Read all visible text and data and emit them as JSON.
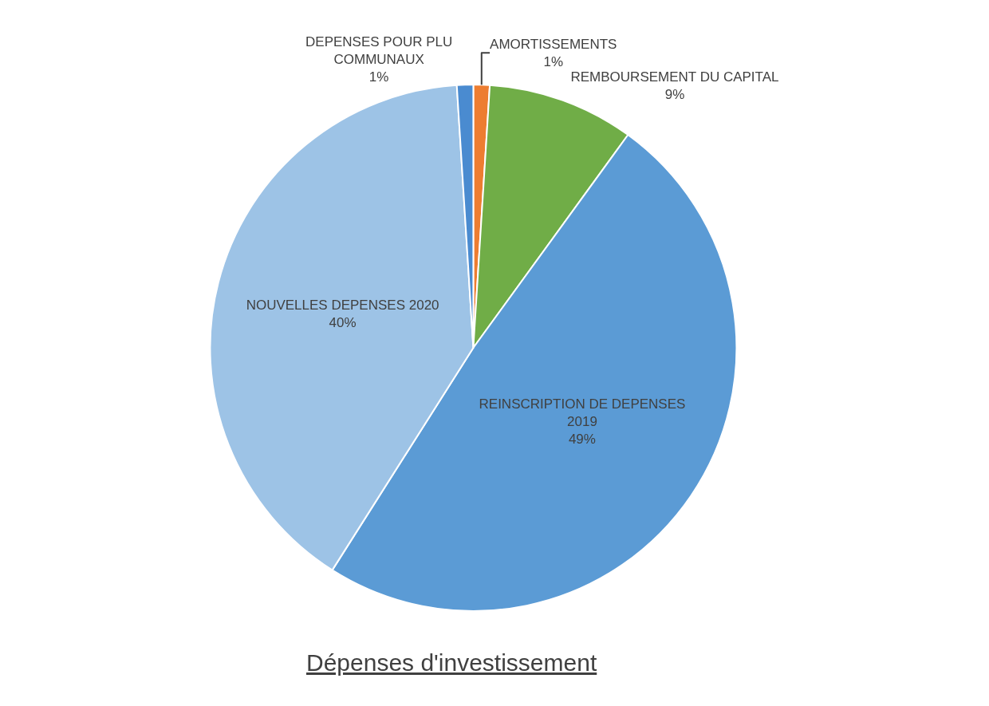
{
  "chart_data": {
    "type": "pie",
    "title": "Dépenses d'investissement",
    "categories": [
      "AMORTISSEMENTS",
      "REMBOURSEMENT DU CAPITAL",
      "REINSCRIPTION DE DEPENSES 2019",
      "NOUVELLES DEPENSES 2020",
      "DEPENSES POUR PLU COMMUNAUX"
    ],
    "values": [
      1,
      9,
      49,
      40,
      1
    ],
    "value_labels": [
      "1%",
      "9%",
      "49%",
      "40%",
      "1%"
    ],
    "colors": [
      "#ed7d31",
      "#70ad47",
      "#5b9bd5",
      "#9dc3e6",
      "#4a8bd0"
    ],
    "legend": false
  }
}
